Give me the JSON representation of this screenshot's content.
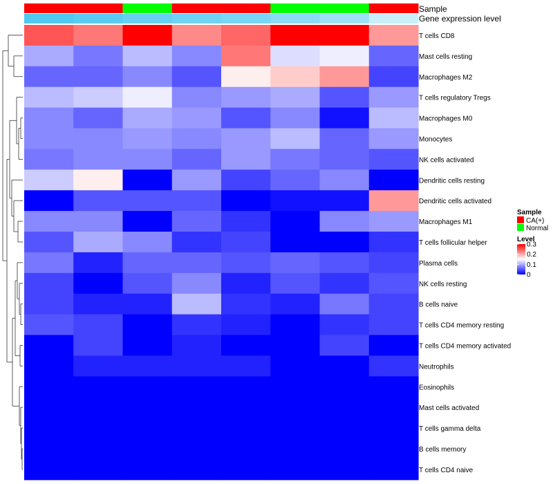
{
  "chart_data": {
    "type": "heatmap",
    "annotation_labels": {
      "sample": "Sample",
      "expression": "Gene expression level"
    },
    "columns": [
      {
        "sample": "CA(+)",
        "expression": 0.98
      },
      {
        "sample": "CA(+)",
        "expression": 0.92
      },
      {
        "sample": "Normal",
        "expression": 0.85
      },
      {
        "sample": "CA(+)",
        "expression": 0.8
      },
      {
        "sample": "CA(+)",
        "expression": 0.75
      },
      {
        "sample": "Normal",
        "expression": 0.65
      },
      {
        "sample": "Normal",
        "expression": 0.55
      },
      {
        "sample": "CA(+)",
        "expression": 0.3
      }
    ],
    "rows": [
      "T cells CD8",
      "Mast cells resting",
      "Macrophages M2",
      "T cells regulatory  Tregs",
      "Macrophages M0",
      "Monocytes",
      "NK cells activated",
      "Dendritic cells resting",
      "Dendritic cells activated",
      "Macrophages M1",
      "T cells follicular helper",
      "Plasma cells",
      "NK cells resting",
      "B cells naive",
      "T cells CD4 memory resting",
      "T cells CD4 memory activated",
      "Neutrophils",
      "Eosinophils",
      "Mast cells activated",
      "T cells gamma delta",
      "B cells memory",
      "T cells CD4 naive"
    ],
    "values": [
      [
        0.25,
        0.23,
        0.3,
        0.22,
        0.24,
        0.3,
        0.3,
        0.21
      ],
      [
        0.1,
        0.07,
        0.11,
        0.08,
        0.23,
        0.13,
        0.14,
        0.06
      ],
      [
        0.06,
        0.06,
        0.08,
        0.05,
        0.16,
        0.18,
        0.21,
        0.04
      ],
      [
        0.11,
        0.12,
        0.14,
        0.08,
        0.09,
        0.1,
        0.05,
        0.09
      ],
      [
        0.08,
        0.06,
        0.1,
        0.09,
        0.05,
        0.08,
        0.01,
        0.11
      ],
      [
        0.08,
        0.08,
        0.09,
        0.08,
        0.09,
        0.11,
        0.06,
        0.09
      ],
      [
        0.07,
        0.08,
        0.08,
        0.06,
        0.09,
        0.07,
        0.06,
        0.05
      ],
      [
        0.12,
        0.16,
        0.0,
        0.09,
        0.04,
        0.06,
        0.08,
        0.0
      ],
      [
        0.0,
        0.05,
        0.05,
        0.05,
        0.0,
        0.01,
        0.01,
        0.21
      ],
      [
        0.08,
        0.08,
        0.0,
        0.06,
        0.03,
        0.0,
        0.08,
        0.09
      ],
      [
        0.05,
        0.1,
        0.08,
        0.03,
        0.04,
        0.0,
        0.0,
        0.03
      ],
      [
        0.07,
        0.02,
        0.06,
        0.06,
        0.05,
        0.06,
        0.05,
        0.04
      ],
      [
        0.04,
        0.0,
        0.05,
        0.08,
        0.02,
        0.05,
        0.03,
        0.05
      ],
      [
        0.04,
        0.02,
        0.02,
        0.11,
        0.03,
        0.02,
        0.07,
        0.04
      ],
      [
        0.05,
        0.04,
        0.0,
        0.03,
        0.02,
        0.0,
        0.03,
        0.04
      ],
      [
        0.0,
        0.04,
        0.0,
        0.02,
        0.0,
        0.0,
        0.04,
        0.0
      ],
      [
        0.0,
        0.02,
        0.02,
        0.02,
        0.02,
        0.0,
        0.0,
        0.03
      ],
      [
        0.0,
        0.0,
        0.0,
        0.0,
        0.0,
        0.0,
        0.0,
        0.0
      ],
      [
        0.0,
        0.0,
        0.0,
        0.0,
        0.0,
        0.0,
        0.0,
        0.0
      ],
      [
        0.0,
        0.0,
        0.0,
        0.0,
        0.0,
        0.0,
        0.0,
        0.0
      ],
      [
        0.0,
        0.0,
        0.0,
        0.0,
        0.0,
        0.0,
        0.0,
        0.0
      ],
      [
        0.0,
        0.0,
        0.0,
        0.0,
        0.0,
        0.0,
        0.0,
        0.0
      ]
    ],
    "row_dendrogram_order": [
      0,
      1,
      2,
      3,
      4,
      5,
      6,
      7,
      8,
      9,
      10,
      11,
      12,
      13,
      14,
      15,
      16,
      17,
      18,
      19,
      20,
      21
    ],
    "legend": {
      "sample_title": "Sample",
      "sample_items": [
        {
          "label": "CA(+)",
          "color": "#ff0000"
        },
        {
          "label": "Normal",
          "color": "#00ff00"
        }
      ],
      "level_title": "Level",
      "level_ticks": [
        "0.3",
        "0.2",
        "0.1",
        "0"
      ],
      "level_range": [
        0,
        0.3
      ]
    },
    "colors": {
      "low": "#0000ff",
      "mid": "#ffffff",
      "high": "#ff0000",
      "expression_low": "#ffffff",
      "expression_high": "#4cc8f0"
    }
  }
}
